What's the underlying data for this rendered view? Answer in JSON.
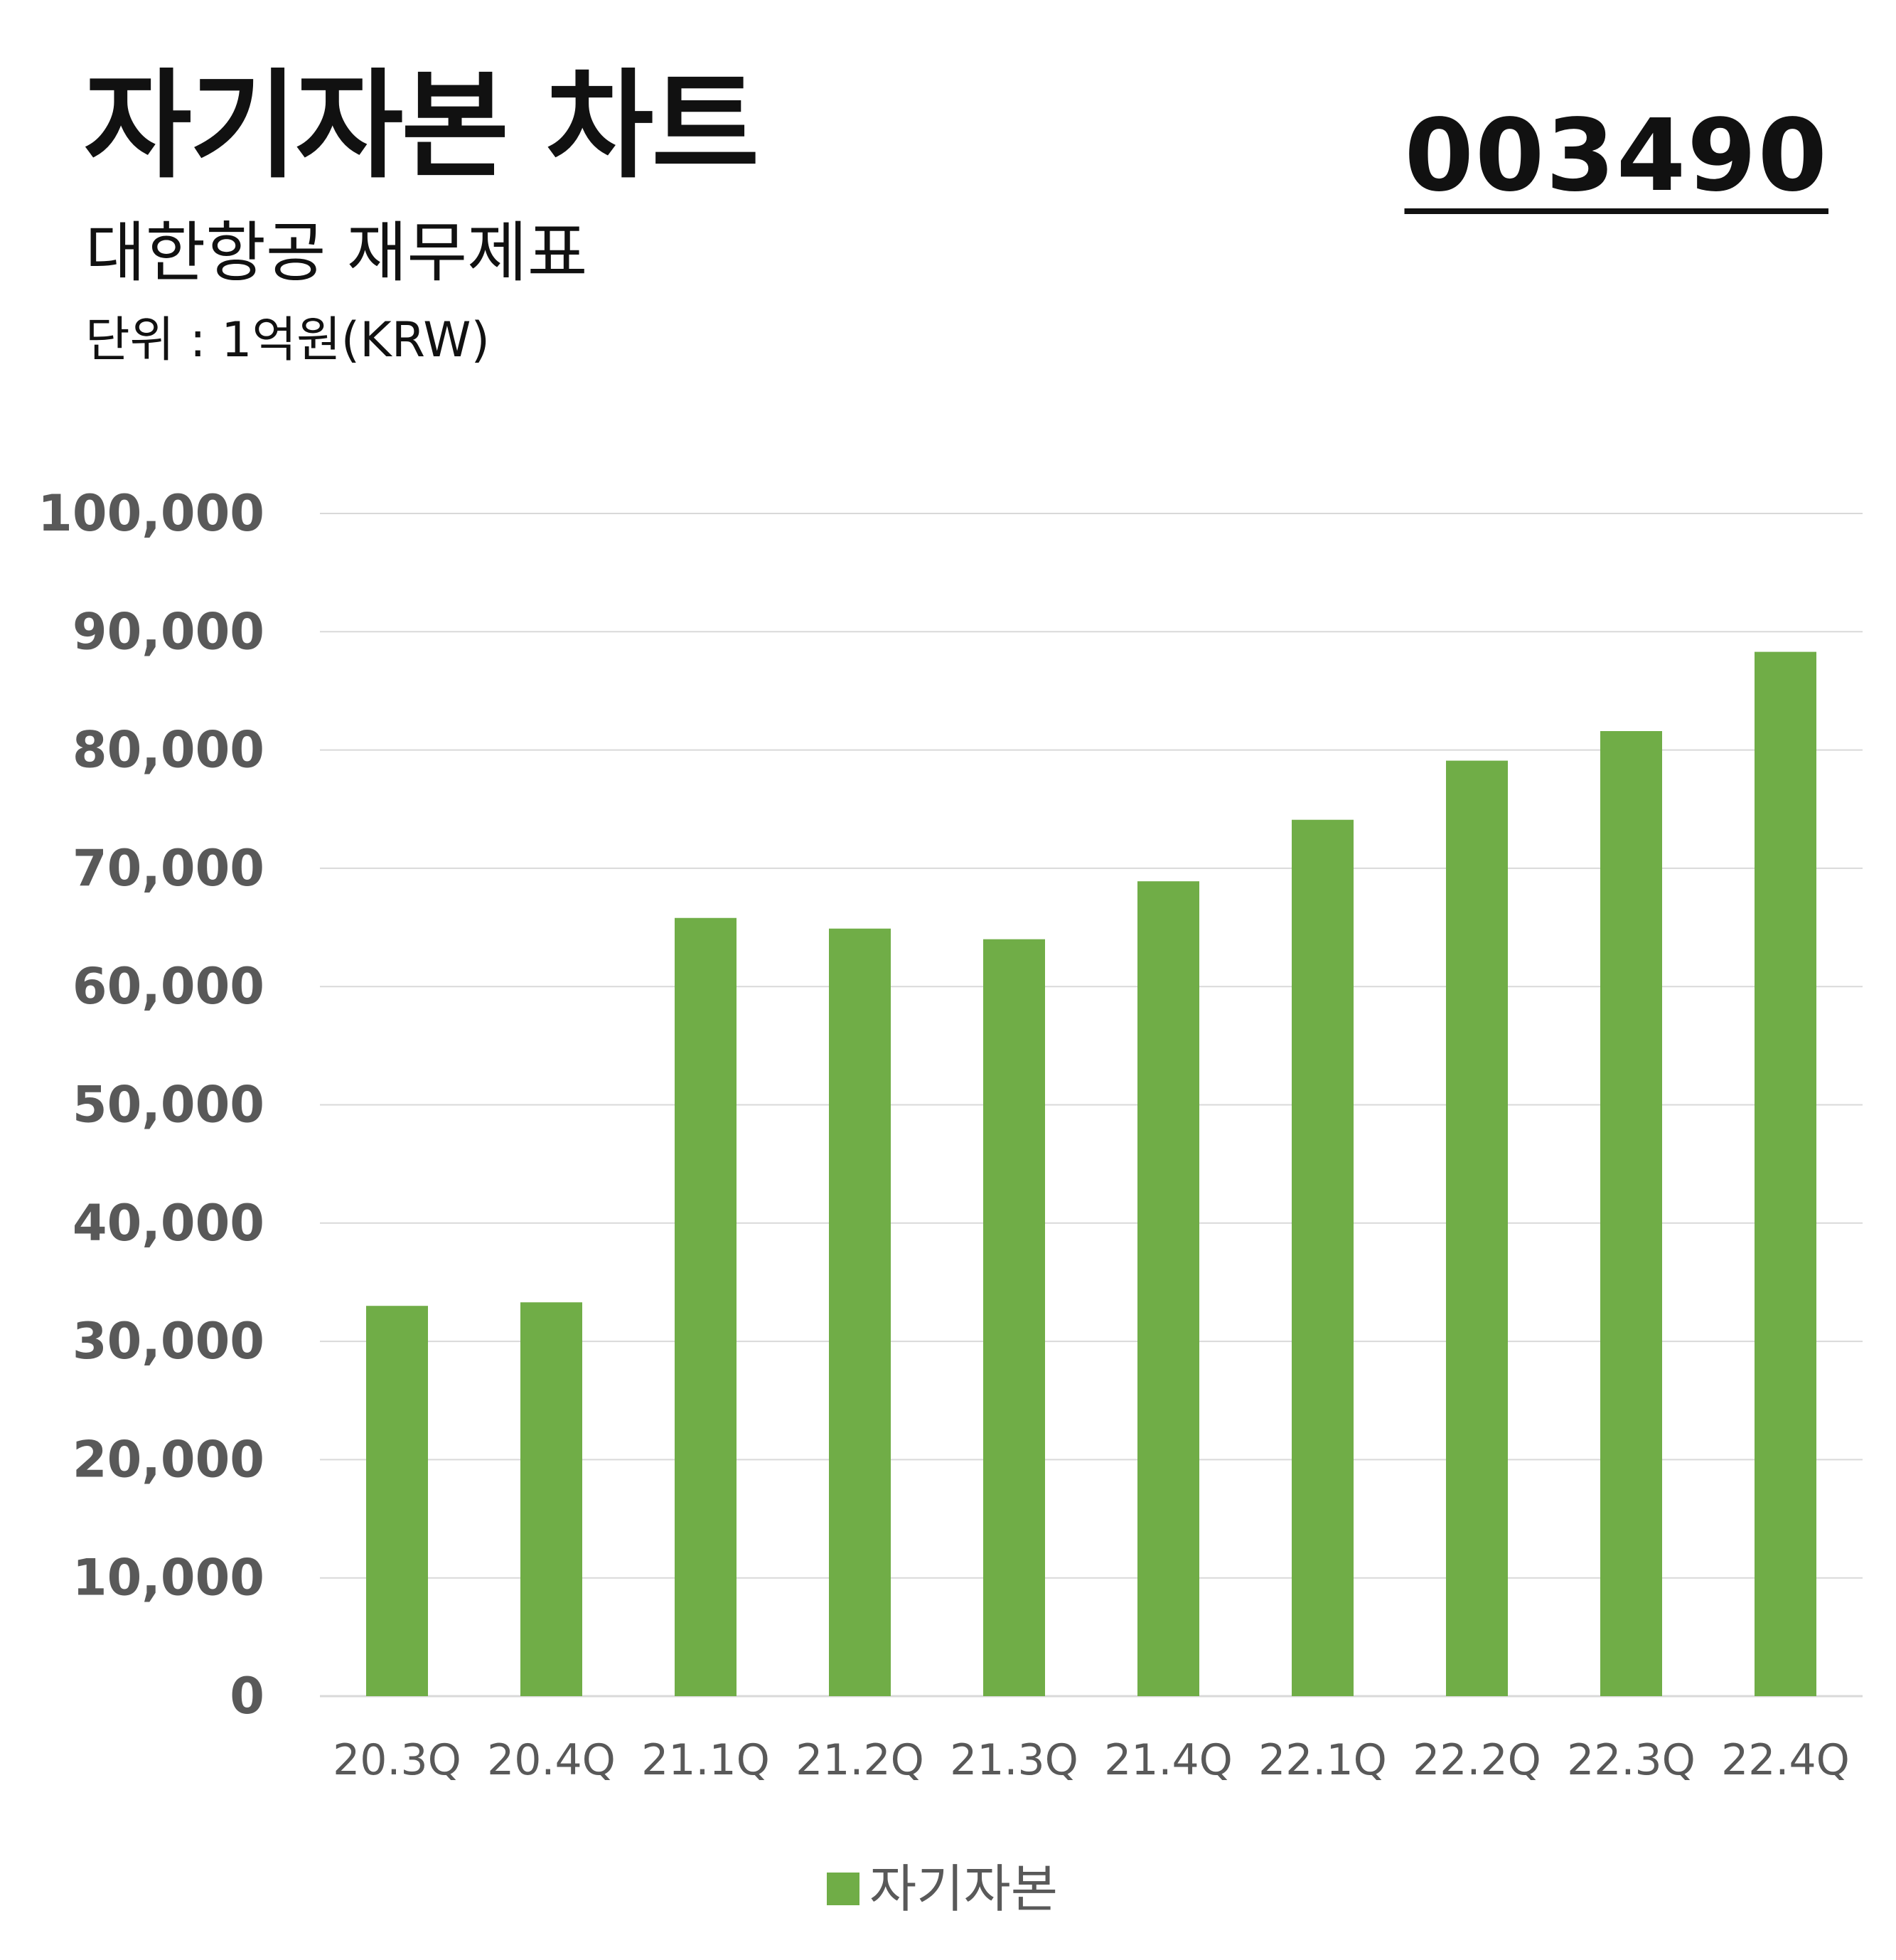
{
  "header": {
    "title": "자기자본 차트",
    "subtitle": "대한항공 재무제표",
    "unit": "단위 : 1억원(KRW)",
    "code": "003490"
  },
  "colors": {
    "bar": "#70AD47",
    "grid": "#D9D9D9",
    "axis_text": "#595959",
    "text": "#111111"
  },
  "chart_data": {
    "type": "bar",
    "categories": [
      "20.3Q",
      "20.4Q",
      "21.1Q",
      "21.2Q",
      "21.3Q",
      "21.4Q",
      "22.1Q",
      "22.2Q",
      "22.3Q",
      "22.4Q"
    ],
    "series": [
      {
        "name": "자기자본",
        "values": [
          33000,
          33300,
          65800,
          64900,
          64000,
          68900,
          74100,
          79100,
          81600,
          88300
        ]
      }
    ],
    "ylim": [
      0,
      100000
    ],
    "yticks": [
      0,
      10000,
      20000,
      30000,
      40000,
      50000,
      60000,
      70000,
      80000,
      90000,
      100000
    ],
    "ytick_labels": [
      "0",
      "10,000",
      "20,000",
      "30,000",
      "40,000",
      "50,000",
      "60,000",
      "70,000",
      "80,000",
      "90,000",
      "100,000"
    ],
    "grid": true,
    "legend": "bottom"
  }
}
